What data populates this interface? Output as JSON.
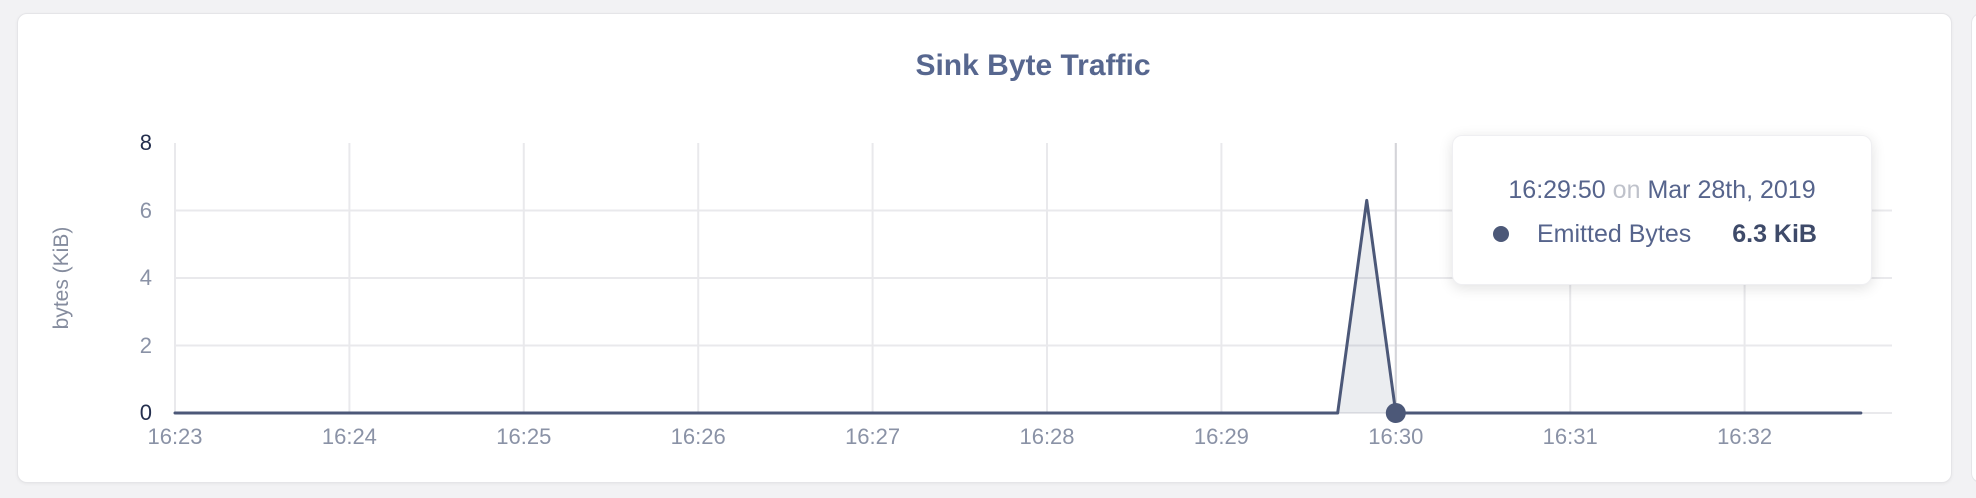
{
  "card": {
    "kind": "metric-chart-panel"
  },
  "chart_data": {
    "type": "area",
    "title": "Sink Byte Traffic",
    "xlabel": "",
    "ylabel": "bytes (KiB)",
    "ylim": [
      0,
      8
    ],
    "y_ticks": [
      8,
      6,
      4,
      2,
      0
    ],
    "x_ticks": [
      "16:23",
      "16:24",
      "16:25",
      "16:26",
      "16:27",
      "16:28",
      "16:29",
      "16:30",
      "16:31",
      "16:32"
    ],
    "grid": true,
    "legend_position": "none",
    "series": [
      {
        "name": "Emitted Bytes",
        "unit": "KiB",
        "points": [
          {
            "time": "16:23:00",
            "kib": 0
          },
          {
            "time": "16:29:40",
            "kib": 0
          },
          {
            "time": "16:29:50",
            "kib": 6.3
          },
          {
            "time": "16:30:00",
            "kib": 0
          },
          {
            "time": "16:32:40",
            "kib": 0
          }
        ]
      }
    ],
    "hover": {
      "crosshair_time": "16:30:00",
      "marker_time": "16:30:00",
      "marker_kib": 0
    },
    "tooltip": {
      "time": "16:29:50",
      "conjunction": "on",
      "date": "Mar 28th, 2019",
      "series_label": "Emitted Bytes",
      "value": "6.3 KiB"
    },
    "colors": {
      "series": "#4c5878",
      "area_fill": "rgba(76,88,120,0.11)",
      "gridline": "#e9e9ec",
      "crosshair": "#d4d4d9",
      "tick_text": "#8a92a6",
      "tick_text_extreme": "#242f4e",
      "title_text": "#57678f"
    }
  }
}
